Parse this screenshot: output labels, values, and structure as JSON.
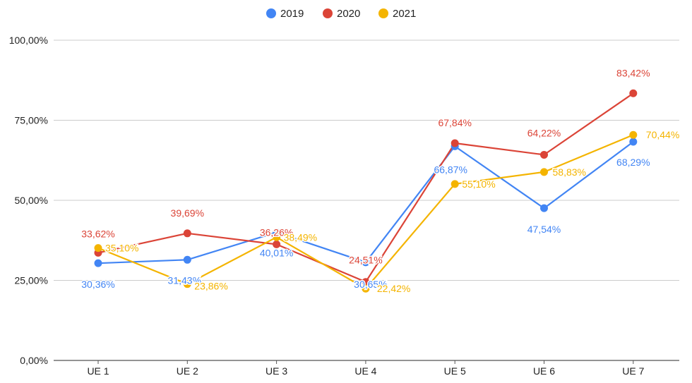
{
  "chart_data": {
    "type": "line",
    "categories": [
      "UE 1",
      "UE 2",
      "UE 3",
      "UE 4",
      "UE 5",
      "UE 6",
      "UE 7"
    ],
    "series": [
      {
        "name": "2019",
        "color": "#4285f4",
        "values": [
          30.36,
          31.43,
          40.01,
          30.65,
          66.87,
          47.54,
          68.29
        ],
        "labels": [
          "30,36%",
          "31,43%",
          "40,01%",
          "30,65%",
          "66,87%",
          "47,54%",
          "68,29%"
        ]
      },
      {
        "name": "2020",
        "color": "#db4437",
        "values": [
          33.62,
          39.69,
          36.26,
          24.51,
          67.84,
          64.22,
          83.42
        ],
        "labels": [
          "33,62%",
          "39,69%",
          "36,26%",
          "24,51%",
          "67,84%",
          "64,22%",
          "83,42%"
        ]
      },
      {
        "name": "2021",
        "color": "#f4b400",
        "values": [
          35.1,
          23.86,
          38.49,
          22.42,
          55.1,
          58.83,
          70.44
        ],
        "labels": [
          "35,10%",
          "23,86%",
          "38,49%",
          "22,42%",
          "55,10%",
          "58,83%",
          "70,44%"
        ]
      }
    ],
    "y_ticks": [
      0,
      25,
      50,
      75,
      100
    ],
    "y_tick_labels": [
      "0,00%",
      "25,00%",
      "50,00%",
      "75,00%",
      "100,00%"
    ],
    "ylim": [
      0,
      100
    ],
    "grid": true,
    "legend_position": "top-center",
    "title": "",
    "xlabel": "",
    "ylabel": ""
  }
}
